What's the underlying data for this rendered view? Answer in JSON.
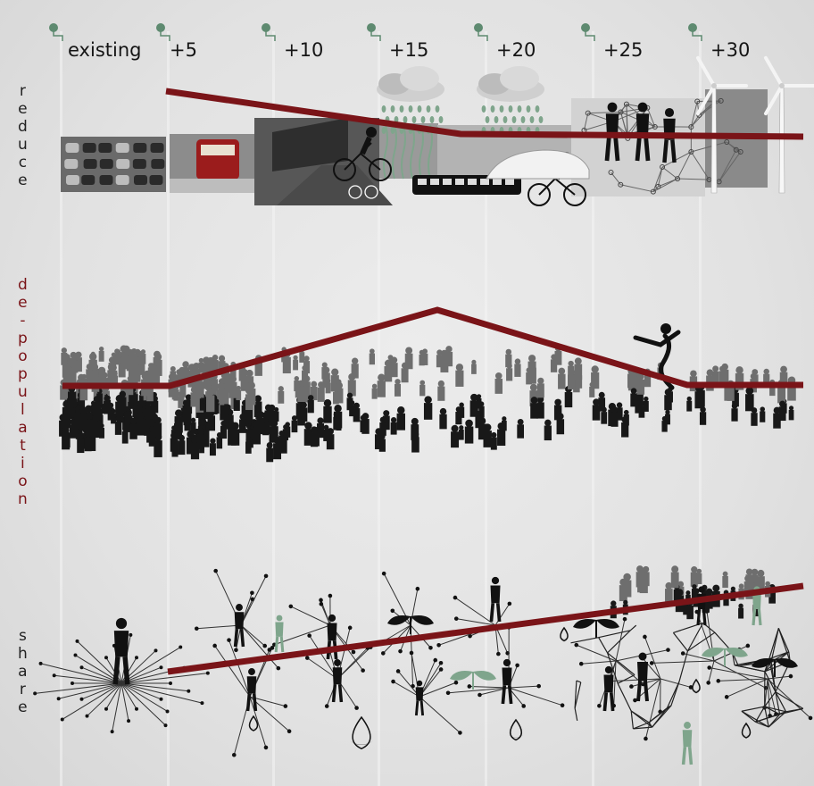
{
  "timeline": {
    "labels": [
      "existing",
      "+5",
      "+10",
      "+15",
      "+20",
      "+25",
      "+30"
    ]
  },
  "rows": {
    "reduce": "reduce",
    "depopulation": "de-population",
    "share": "share"
  },
  "colors": {
    "trend_line": "#7a1418",
    "marker": "#5e8a70",
    "accent_green": "#7fa58c",
    "silhouette": "#151515"
  },
  "icons": {
    "reduce": [
      "car-traffic-icon",
      "tram-icon",
      "building-icon",
      "cyclist-icon",
      "rain-cloud-icon",
      "bus-icon",
      "walking-people-icon",
      "network-icon",
      "wind-turbine-icon"
    ],
    "depopulation": [
      "crowd-icon",
      "dancer-icon"
    ],
    "share": [
      "woman-silhouette-icon",
      "network-icon",
      "water-drop-icon",
      "leaf-icon"
    ]
  }
}
